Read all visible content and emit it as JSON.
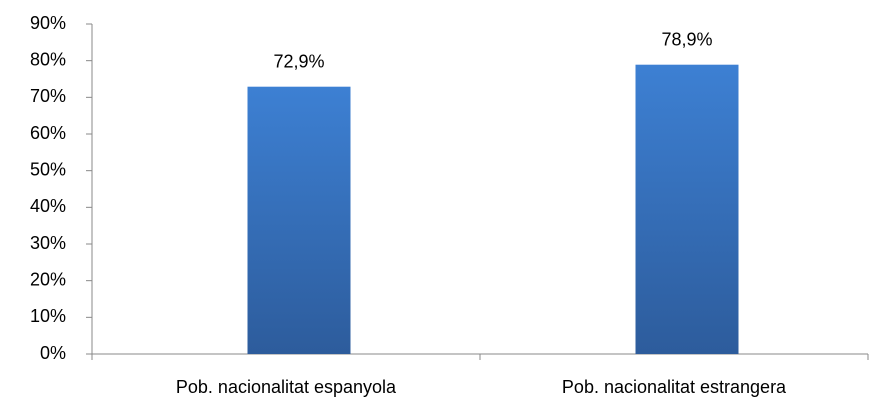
{
  "chart_data": {
    "type": "bar",
    "categories": [
      "Pob. nacionalitat espanyola",
      "Pob. nacionalitat estrangera"
    ],
    "values": [
      72.9,
      78.9
    ],
    "value_labels": [
      "72,9%",
      "78,9%"
    ],
    "color": "#3a75c4",
    "ylim": [
      0,
      90
    ],
    "yticks": [
      {
        "value": 0,
        "label": "0%"
      },
      {
        "value": 10,
        "label": "10%"
      },
      {
        "value": 20,
        "label": "20%"
      },
      {
        "value": 30,
        "label": "30%"
      },
      {
        "value": 40,
        "label": "40%"
      },
      {
        "value": 50,
        "label": "50%"
      },
      {
        "value": 60,
        "label": "60%"
      },
      {
        "value": 70,
        "label": "70%"
      },
      {
        "value": 80,
        "label": "80%"
      },
      {
        "value": 90,
        "label": "90%"
      }
    ],
    "grid": false
  }
}
